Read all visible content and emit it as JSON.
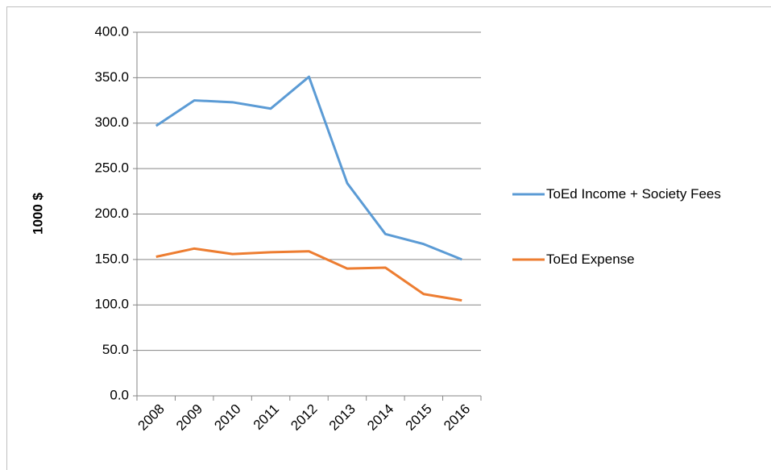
{
  "chart_data": {
    "type": "line",
    "ylabel": "1000 $",
    "categories": [
      "2008",
      "2009",
      "2010",
      "2011",
      "2012",
      "2013",
      "2014",
      "2015",
      "2016"
    ],
    "series": [
      {
        "name": "ToEd Income + Society Fees",
        "color": "#5b9bd5",
        "values": [
          297,
          325,
          323,
          316,
          351,
          234,
          178,
          167,
          150
        ]
      },
      {
        "name": "ToEd Expense",
        "color": "#ed7d31",
        "values": [
          153,
          162,
          156,
          158,
          159,
          140,
          141,
          112,
          105
        ]
      }
    ],
    "ylim": [
      0,
      400
    ],
    "yticks": [
      {
        "value": 0,
        "label": "0.0"
      },
      {
        "value": 50,
        "label": "50.0"
      },
      {
        "value": 100,
        "label": "100.0"
      },
      {
        "value": 150,
        "label": "150.0"
      },
      {
        "value": 200,
        "label": "200.0"
      },
      {
        "value": 250,
        "label": "250.0"
      },
      {
        "value": 300,
        "label": "300.0"
      },
      {
        "value": 350,
        "label": "350.0"
      },
      {
        "value": 400,
        "label": "400.0"
      }
    ],
    "grid": true,
    "legend": "right"
  }
}
